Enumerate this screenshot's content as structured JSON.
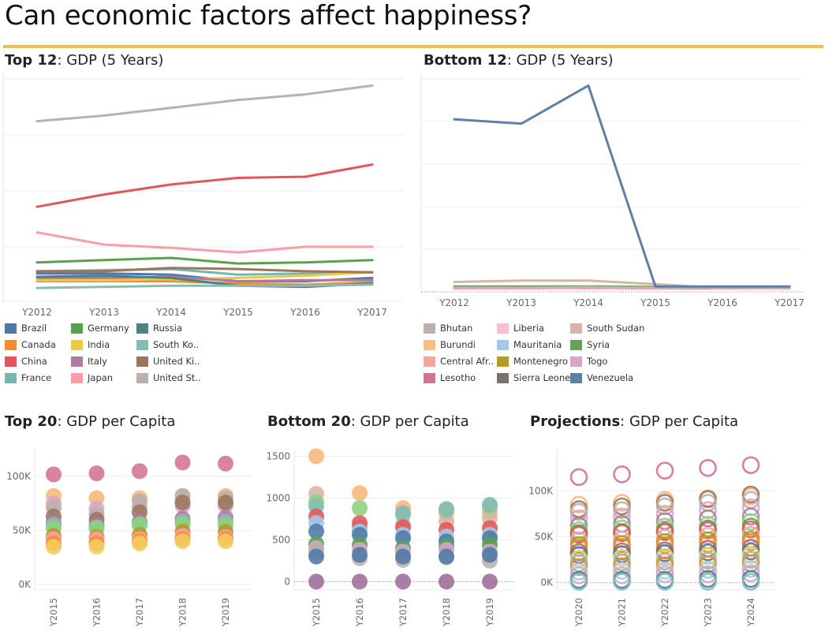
{
  "dashboard": {
    "title": "Can economic factors affect happiness?",
    "accent_color": "#f2be52"
  },
  "sheets": {
    "top12": {
      "bold": "Top 12",
      "rest": ": GDP (5 Years)"
    },
    "bottom12": {
      "bold": "Bottom 12",
      "rest": ": GDP (5 Years)"
    },
    "top20": {
      "bold": "Top 20",
      "rest": ": GDP per Capita"
    },
    "bottom20": {
      "bold": "Bottom 20",
      "rest": ": GDP per Capita"
    },
    "projections": {
      "bold": "Projections",
      "rest": ": GDP per Capita"
    }
  },
  "chart_data": [
    {
      "id": "top12",
      "type": "line",
      "categories": [
        "Y2012",
        "Y2013",
        "Y2014",
        "Y2015",
        "Y2016",
        "Y2017"
      ],
      "ylim": [
        0,
        20
      ],
      "y_axis_labels": false,
      "grid": true,
      "legend_position": "bottom",
      "series": [
        {
          "name": "Brazil",
          "color": "#4e79a7",
          "values": [
            2.5,
            2.5,
            2.4,
            1.8,
            1.8,
            2.1
          ]
        },
        {
          "name": "Canada",
          "color": "#f28e2b",
          "values": [
            1.8,
            1.8,
            1.8,
            1.6,
            1.5,
            1.7
          ]
        },
        {
          "name": "China",
          "color": "#e15759",
          "values": [
            8.5,
            9.6,
            10.5,
            11.1,
            11.2,
            12.3
          ]
        },
        {
          "name": "France",
          "color": "#76b7b2",
          "values": [
            2.7,
            2.8,
            2.9,
            2.4,
            2.5,
            2.6
          ]
        },
        {
          "name": "Germany",
          "color": "#59a14f",
          "values": [
            3.5,
            3.7,
            3.9,
            3.4,
            3.5,
            3.7
          ]
        },
        {
          "name": "India",
          "color": "#edc948",
          "values": [
            1.9,
            1.9,
            2.0,
            2.1,
            2.3,
            2.6
          ]
        },
        {
          "name": "Italy",
          "color": "#b07aa1",
          "values": [
            2.1,
            2.1,
            2.2,
            1.8,
            1.9,
            1.9
          ]
        },
        {
          "name": "Japan",
          "color": "#ff9da7",
          "values": [
            6.2,
            5.1,
            4.8,
            4.4,
            4.9,
            4.9
          ]
        },
        {
          "name": "Russia",
          "color": "#4b8484",
          "values": [
            2.2,
            2.3,
            2.1,
            1.4,
            1.3,
            1.6
          ]
        },
        {
          "name": "South Ko..",
          "color": "#86bcb6",
          "values": [
            1.2,
            1.3,
            1.4,
            1.4,
            1.4,
            1.5
          ]
        },
        {
          "name": "United Ki..",
          "color": "#9c755f",
          "values": [
            2.7,
            2.7,
            3.0,
            2.9,
            2.7,
            2.6
          ]
        },
        {
          "name": "United St..",
          "color": "#bab0ac",
          "values": [
            16.2,
            16.7,
            17.4,
            18.1,
            18.6,
            19.4
          ]
        }
      ]
    },
    {
      "id": "bottom12",
      "type": "line",
      "categories": [
        "Y2012",
        "Y2013",
        "Y2014",
        "Y2015",
        "Y2016",
        "Y2017"
      ],
      "ylim": [
        -0.05,
        4.7
      ],
      "y_axis_labels": false,
      "grid": true,
      "legend_position": "bottom",
      "series": [
        {
          "name": "Bhutan",
          "color": "#bab0ac",
          "values": [
            0.02,
            0.02,
            0.02,
            0.02,
            0.02,
            0.02
          ]
        },
        {
          "name": "Burundi",
          "color": "#ffbe7d",
          "values": [
            0.03,
            0.03,
            0.03,
            0.03,
            0.03,
            0.03
          ]
        },
        {
          "name": "Central Afr..",
          "color": "#f1a79b",
          "values": [
            0.02,
            0.02,
            0.02,
            0.02,
            0.02,
            0.02
          ]
        },
        {
          "name": "Lesotho",
          "color": "#d37295",
          "values": [
            0.03,
            0.03,
            0.03,
            0.03,
            0.03,
            0.03
          ]
        },
        {
          "name": "Liberia",
          "color": "#fabfd2",
          "values": [
            0.02,
            0.02,
            0.02,
            0.02,
            0.02,
            0.02
          ]
        },
        {
          "name": "Mauritania",
          "color": "#a0cbe8",
          "values": [
            0.05,
            0.05,
            0.05,
            0.05,
            0.05,
            0.05
          ]
        },
        {
          "name": "Montenegro",
          "color": "#b6992d",
          "values": [
            0.04,
            0.04,
            0.05,
            0.04,
            0.04,
            0.05
          ]
        },
        {
          "name": "Sierra Leone",
          "color": "#79706e",
          "values": [
            0.04,
            0.05,
            0.05,
            0.04,
            0.04,
            0.04
          ]
        },
        {
          "name": "South Sudan",
          "color": "#d4b5a6",
          "values": [
            0.17,
            0.2,
            0.2,
            0.12,
            0.03,
            0.04
          ]
        },
        {
          "name": "Syria",
          "color": "#6a9f58",
          "values": [
            0.07,
            0.07,
            0.07,
            0.06,
            0.05,
            0.05
          ]
        },
        {
          "name": "Togo",
          "color": "#d4a6c8",
          "values": [
            0.04,
            0.04,
            0.05,
            0.04,
            0.05,
            0.05
          ]
        },
        {
          "name": "Venezuela",
          "color": "#5f7fa6",
          "values": [
            3.8,
            3.7,
            4.55,
            0.07,
            0.07,
            0.07
          ]
        }
      ]
    },
    {
      "id": "top20",
      "type": "scatter",
      "categories": [
        "Y2015",
        "Y2016",
        "Y2017",
        "Y2018",
        "Y2019"
      ],
      "ylim": [
        -5000,
        125000
      ],
      "yticks": [
        {
          "value": 0,
          "label": "0K"
        },
        {
          "value": 50000,
          "label": "50K"
        },
        {
          "value": 100000,
          "label": "100K"
        }
      ],
      "point_style": "filled",
      "series": [
        {
          "color": "#d37295",
          "values": [
            102000,
            103000,
            105000,
            113000,
            112000
          ]
        },
        {
          "color": "#f8b679",
          "values": [
            82000,
            80000,
            80000,
            82000,
            82000
          ]
        },
        {
          "color": "#d4a6c8",
          "values": [
            75000,
            70000,
            72000,
            73000,
            73000
          ]
        },
        {
          "color": "#bab0ac",
          "values": [
            71000,
            65000,
            77000,
            82000,
            80000
          ]
        },
        {
          "color": "#9c755f",
          "values": [
            63000,
            60000,
            67000,
            76000,
            76000
          ]
        },
        {
          "color": "#b07aa1",
          "values": [
            57000,
            55000,
            58000,
            61000,
            62000
          ]
        },
        {
          "color": "#86bcb6",
          "values": [
            55000,
            53000,
            56000,
            58000,
            58000
          ]
        },
        {
          "color": "#8cd17d",
          "values": [
            52000,
            52000,
            55000,
            56000,
            55000
          ]
        },
        {
          "color": "#b6992d",
          "values": [
            45000,
            44000,
            46000,
            49000,
            49000
          ]
        },
        {
          "color": "#ff9da7",
          "values": [
            42000,
            42000,
            42000,
            45000,
            44000
          ]
        },
        {
          "color": "#f28e2b",
          "values": [
            38000,
            38000,
            40000,
            42000,
            42000
          ]
        },
        {
          "color": "#f1ce63",
          "values": [
            35000,
            35000,
            38000,
            40000,
            40000
          ]
        }
      ]
    },
    {
      "id": "bottom20",
      "type": "scatter",
      "categories": [
        "Y2015",
        "Y2016",
        "Y2017",
        "Y2018",
        "Y2019"
      ],
      "ylim": [
        -100,
        1580
      ],
      "yticks": [
        {
          "value": 0,
          "label": "0"
        },
        {
          "value": 500,
          "label": "500"
        },
        {
          "value": 1000,
          "label": "1000"
        },
        {
          "value": 1500,
          "label": "1500"
        }
      ],
      "zero_line": true,
      "point_style": "filled",
      "series": [
        {
          "color": "#f8b679",
          "values": [
            1500,
            1060,
            880,
            820,
            840
          ]
        },
        {
          "color": "#d4b5a6",
          "values": [
            1050,
            620,
            680,
            720,
            760
          ]
        },
        {
          "color": "#8cd17d",
          "values": [
            950,
            880,
            800,
            870,
            900
          ]
        },
        {
          "color": "#86bcb6",
          "values": [
            900,
            650,
            820,
            860,
            920
          ]
        },
        {
          "color": "#e15759",
          "values": [
            780,
            700,
            650,
            620,
            640
          ]
        },
        {
          "color": "#a0cbe8",
          "values": [
            700,
            600,
            560,
            540,
            560
          ]
        },
        {
          "color": "#4e79a7",
          "values": [
            600,
            560,
            520,
            480,
            520
          ]
        },
        {
          "color": "#59a14f",
          "values": [
            450,
            440,
            400,
            420,
            440
          ]
        },
        {
          "color": "#d4a6c8",
          "values": [
            400,
            380,
            360,
            380,
            360
          ]
        },
        {
          "color": "#bab0ac",
          "values": [
            350,
            280,
            260,
            290,
            250
          ]
        },
        {
          "color": "#4e79a7",
          "values": [
            300,
            320,
            300,
            300,
            320
          ]
        },
        {
          "color": "#9c6c99",
          "values": [
            0,
            0,
            0,
            0,
            0
          ]
        }
      ]
    },
    {
      "id": "projections",
      "type": "scatter",
      "categories": [
        "Y2020",
        "Y2021",
        "Y2022",
        "Y2023",
        "Y2024"
      ],
      "ylim": [
        -8000,
        145000
      ],
      "yticks": [
        {
          "value": 0,
          "label": "0K"
        },
        {
          "value": 50000,
          "label": "50K"
        },
        {
          "value": 100000,
          "label": "100K"
        }
      ],
      "zero_line": true,
      "point_style": "hollow",
      "series": [
        {
          "color": "#d37295",
          "values": [
            115000,
            118000,
            122000,
            125000,
            128000
          ]
        },
        {
          "color": "#f8b679",
          "values": [
            85000,
            87000,
            90000,
            92000,
            94000
          ]
        },
        {
          "color": "#9c755f",
          "values": [
            80000,
            83000,
            87000,
            91000,
            96000
          ]
        },
        {
          "color": "#bab0ac",
          "values": [
            77000,
            79000,
            83000,
            87000,
            90000
          ]
        },
        {
          "color": "#d4a6c8",
          "values": [
            70000,
            72000,
            75000,
            79000,
            82000
          ]
        },
        {
          "color": "#b07aa1",
          "values": [
            62000,
            64000,
            67000,
            70000,
            72000
          ]
        },
        {
          "color": "#8cd17d",
          "values": [
            57000,
            59000,
            61000,
            63000,
            66000
          ]
        },
        {
          "color": "#59a14f",
          "values": [
            54000,
            55000,
            57000,
            59000,
            61000
          ]
        },
        {
          "color": "#e15759",
          "values": [
            52000,
            54000,
            55000,
            57000,
            58000
          ]
        },
        {
          "color": "#ff9da7",
          "values": [
            46000,
            47000,
            49000,
            51000,
            52000
          ]
        },
        {
          "color": "#b6992d",
          "values": [
            41000,
            42000,
            44000,
            46000,
            47000
          ]
        },
        {
          "color": "#f28e2b",
          "values": [
            38000,
            39000,
            41000,
            42000,
            44000
          ]
        },
        {
          "color": "#9c755f",
          "values": [
            33000,
            34000,
            35000,
            37000,
            38000
          ]
        },
        {
          "color": "#4e79a7",
          "values": [
            30000,
            31000,
            32000,
            33000,
            34000
          ]
        },
        {
          "color": "#f1ce63",
          "values": [
            26000,
            27000,
            28000,
            29000,
            30000
          ]
        },
        {
          "color": "#86bcb6",
          "values": [
            21000,
            22000,
            23000,
            24000,
            25000
          ]
        },
        {
          "color": "#f28e2b",
          "values": [
            17000,
            18000,
            19000,
            20000,
            21000
          ]
        },
        {
          "color": "#a0cbe8",
          "values": [
            12000,
            13000,
            13000,
            14000,
            15000
          ]
        },
        {
          "color": "#d4a6c8",
          "values": [
            8000,
            8000,
            9000,
            9000,
            10000
          ]
        },
        {
          "color": "#4e79a7",
          "values": [
            3000,
            3000,
            3000,
            4000,
            4000
          ]
        },
        {
          "color": "#86bcb6",
          "values": [
            1000,
            1000,
            1000,
            1000,
            1000
          ]
        }
      ]
    }
  ]
}
